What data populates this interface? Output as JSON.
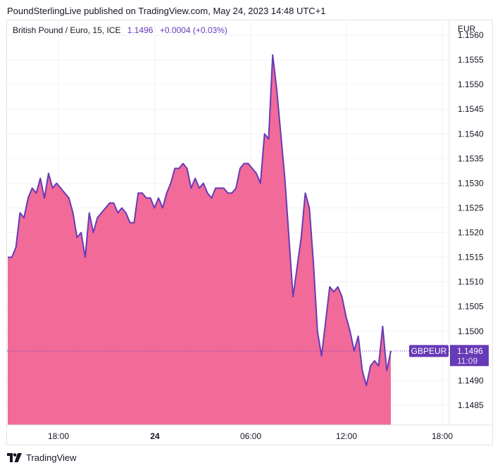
{
  "header": {
    "published_text": "PoundSterlingLive published on TradingView.com, May 24, 2023 14:48 UTC+1"
  },
  "legend": {
    "symbol": "British Pound / Euro, 15, ICE",
    "last_price": "1.1496",
    "change": "+0.0004 (+0.03%)"
  },
  "axis": {
    "currency": "EUR"
  },
  "price_label": {
    "symbol": "GBPEUR",
    "price": "1.1496",
    "countdown": "11:09"
  },
  "footer": {
    "brand": "TradingView"
  },
  "colors": {
    "area_fill": "#f06292",
    "line": "#673ab7",
    "label_bg": "#673ab7",
    "grid": "#f0f3fa",
    "text": "#131722"
  },
  "chart_data": {
    "type": "area",
    "title": "British Pound / Euro, 15, ICE",
    "series": [
      {
        "name": "GBPEUR",
        "values": [
          1.1515,
          1.1515,
          1.1517,
          1.1524,
          1.1523,
          1.1527,
          1.1529,
          1.1528,
          1.1531,
          1.1527,
          1.1532,
          1.1529,
          1.153,
          1.1529,
          1.1528,
          1.1527,
          1.1524,
          1.1519,
          1.152,
          1.1515,
          1.1524,
          1.152,
          1.1523,
          1.1524,
          1.1525,
          1.1526,
          1.1526,
          1.1524,
          1.1525,
          1.1524,
          1.1522,
          1.1522,
          1.1528,
          1.1528,
          1.1527,
          1.1527,
          1.1525,
          1.1527,
          1.1525,
          1.1528,
          1.153,
          1.1533,
          1.1533,
          1.1534,
          1.1533,
          1.1529,
          1.1531,
          1.1529,
          1.153,
          1.1528,
          1.1527,
          1.1529,
          1.1529,
          1.1529,
          1.1528,
          1.1528,
          1.1529,
          1.1533,
          1.1534,
          1.1534,
          1.1533,
          1.1532,
          1.153,
          1.154,
          1.1539,
          1.1556,
          1.1549,
          1.154,
          1.1531,
          1.1519,
          1.1507,
          1.1513,
          1.1519,
          1.1528,
          1.1525,
          1.1514,
          1.15,
          1.1495,
          1.1502,
          1.1509,
          1.1508,
          1.1509,
          1.1507,
          1.1503,
          1.15,
          1.1496,
          1.1499,
          1.1492,
          1.1489,
          1.1493,
          1.1494,
          1.1493,
          1.1501,
          1.1492,
          1.1496
        ]
      }
    ],
    "current_value": 1.1496,
    "x_ticks": [
      "18:00",
      "24",
      "06:00",
      "12:00",
      "18:00"
    ],
    "y_ticks": [
      "1.1560",
      "1.1555",
      "1.1550",
      "1.1545",
      "1.1540",
      "1.1535",
      "1.1530",
      "1.1525",
      "1.1520",
      "1.1515",
      "1.1510",
      "1.1505",
      "1.1500",
      "1.1490",
      "1.1485"
    ],
    "ylim": [
      1.1481,
      1.1563
    ],
    "grid": true,
    "legend": "top-left"
  }
}
